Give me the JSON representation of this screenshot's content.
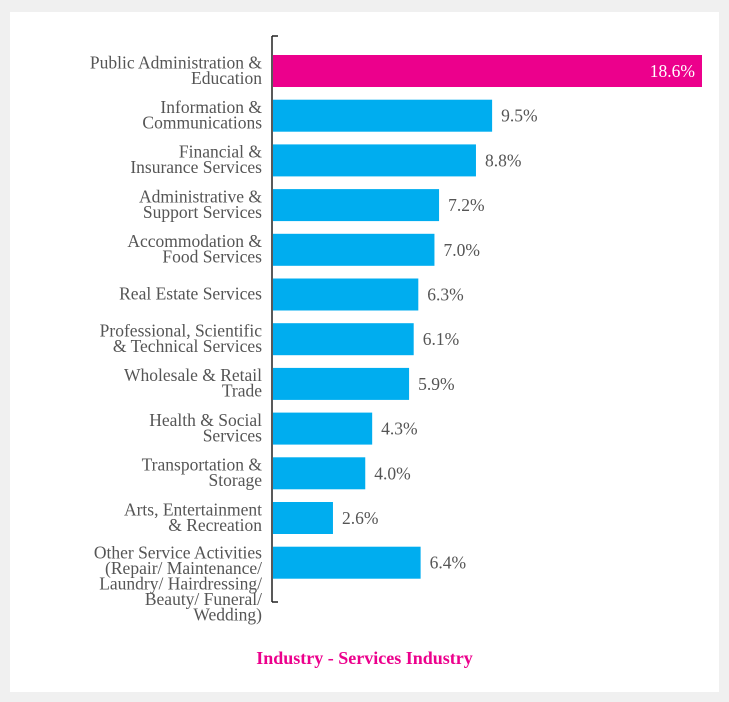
{
  "chart_data": {
    "type": "bar",
    "orientation": "horizontal",
    "caption": "Industry - Services Industry",
    "categories": [
      [
        "Public Administration &",
        "Education"
      ],
      [
        "Information &",
        "Communications"
      ],
      [
        "Financial &",
        "Insurance Services"
      ],
      [
        "Administrative &",
        "Support Services"
      ],
      [
        "Accommodation &",
        "Food Services"
      ],
      [
        "Real Estate Services"
      ],
      [
        "Professional, Scientific",
        "& Technical Services"
      ],
      [
        "Wholesale & Retail",
        "Trade"
      ],
      [
        "Health & Social",
        "Services"
      ],
      [
        "Transportation &",
        "Storage"
      ],
      [
        "Arts, Entertainment",
        "& Recreation"
      ],
      [
        "Other Service Activities",
        "(Repair/ Maintenance/",
        "Laundry/ Hairdressing/",
        "Beauty/ Funeral/",
        "Wedding)"
      ]
    ],
    "values": [
      18.6,
      9.5,
      8.8,
      7.2,
      7.0,
      6.3,
      6.1,
      5.9,
      4.3,
      4.0,
      2.6,
      6.4
    ],
    "value_labels": [
      "18.6%",
      "9.5%",
      "8.8%",
      "7.2%",
      "7.0%",
      "6.3%",
      "6.1%",
      "5.9%",
      "4.3%",
      "4.0%",
      "2.6%",
      "6.4%"
    ],
    "highlight_index": 0,
    "xlim": [
      0,
      18.6
    ],
    "grid": false,
    "legend": "none"
  },
  "colors": {
    "bar": "#00adef",
    "highlight": "#ec008c",
    "caption": "#ec008c",
    "label": "#555555",
    "highlight_label": "#ffffff",
    "axis": "#222222"
  }
}
